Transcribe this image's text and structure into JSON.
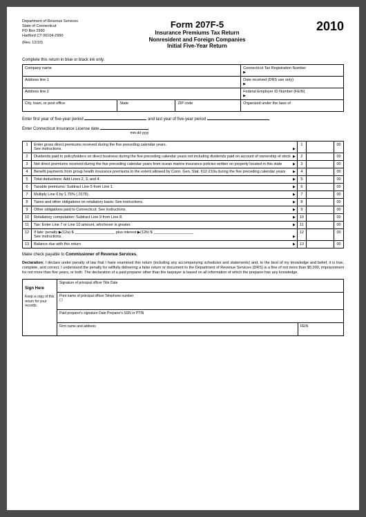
{
  "dept": {
    "l1": "Department of Revenue Services",
    "l2": "State of Connecticut",
    "l3": "PO Box 2990",
    "l4": "Hartford CT 06104-2990",
    "rev": "(Rev. 12/10)"
  },
  "header": {
    "form_no": "Form 207F-5",
    "sub1": "Insurance Premiums Tax Return",
    "sub2": "Nonresident and Foreign Companies",
    "sub3": "Initial Five-Year Return",
    "year": "2010"
  },
  "instr": "Complete this return in blue or black ink only.",
  "info": {
    "company": "Company name",
    "reg": "Connecticut Tax Registration Number",
    "addr1": "Address line 1",
    "date_recv": "Date received (DRS use only)",
    "addr2": "Address line 2",
    "fein": "Federal Employer ID Number (FEIN)",
    "city": "City, town, or post office",
    "state": "State",
    "zip": "ZIP code",
    "org": "Organized under the laws of"
  },
  "fill1_a": "Enter first year of five-year period",
  "fill1_b": "and last year of five-year period",
  "fill2": "Enter Connecticut Insurance License date",
  "mdy": "mm    dd    yyyy",
  "rows": [
    {
      "n": "1",
      "d": "Enter gross direct premiums received during the five preceding calendar years.\nSee instructions.",
      "c": "00"
    },
    {
      "n": "2",
      "d": "Dividends paid to policyholders on direct business during the five preceding calendar years not including dividends paid on account of ownership of stock",
      "c": "00"
    },
    {
      "n": "3",
      "d": "Net direct premiums received during the five preceding calendar years from ocean marine insurance policies written on property located in this state",
      "c": "00"
    },
    {
      "n": "4",
      "d": "Benefit payments from group health insurance premiums to the extent allowed by Conn. Gen. Stat. §12-210a during the five preceding calendar years",
      "c": "00"
    },
    {
      "n": "5",
      "d": "Total deductions: Add Lines 2, 3, and 4.",
      "c": "00"
    },
    {
      "n": "6",
      "d": "Taxable premiums: Subtract Line 5 from Line 1.",
      "c": "00"
    },
    {
      "n": "7",
      "d": "Multiply Line 6 by 1.75% (.0175).",
      "c": "00"
    },
    {
      "n": "8",
      "d": "Taxes and other obligations on retaliatory basis: See instructions.",
      "c": "00"
    },
    {
      "n": "9",
      "d": "Other obligations paid to Connecticut: See instructions.",
      "c": "00"
    },
    {
      "n": "10",
      "d": "Retaliatory computation: Subtract Line 9 from Line 8.",
      "c": "00"
    },
    {
      "n": "11",
      "d": "Tax: Enter Line 7 or Line 10 amount, whichever is greater.",
      "c": "00"
    },
    {
      "n": "12",
      "d": "If late: penalty  ▶(12a) $ ___________________ plus interest  ▶(12b)  $ ___________________\nSee instructions.",
      "c": "00"
    },
    {
      "n": "13",
      "d": "Balance due with this return",
      "c": "00"
    }
  ],
  "payable": "Make check payable to Commissioner of Revenue Services.",
  "decl_label": "Declaration:",
  "decl": " I declare under penalty of law that I have examined this return (including any accompanying schedules and statements) and, to the best of my knowledge and belief, it is true, complete, and correct. I understand the penalty for willfully delivering a false return or document to the Department of Revenue Services (DRS) is a fine of not more than $5,000, imprisonment for not more than five years, or both. The declaration of a paid preparer other than the taxpayer is based on all information of which the preparer has any knowledge.",
  "sign": {
    "here": "Sign Here",
    "keep": "Keep a copy of this return for your records.",
    "sig": "Signature of principal officer Title Date",
    "print": "Print name of principal officer  Telephone number",
    "paren": "(          )",
    "prep": "Paid preparer's signature Date Preparer's SSN or PTIN",
    "firm": "Firm name and address",
    "fein": "FEIN"
  },
  "colors": {
    "page_bg": "#ffffff",
    "text": "#000000",
    "outer_bg": "#4a4a4a"
  }
}
